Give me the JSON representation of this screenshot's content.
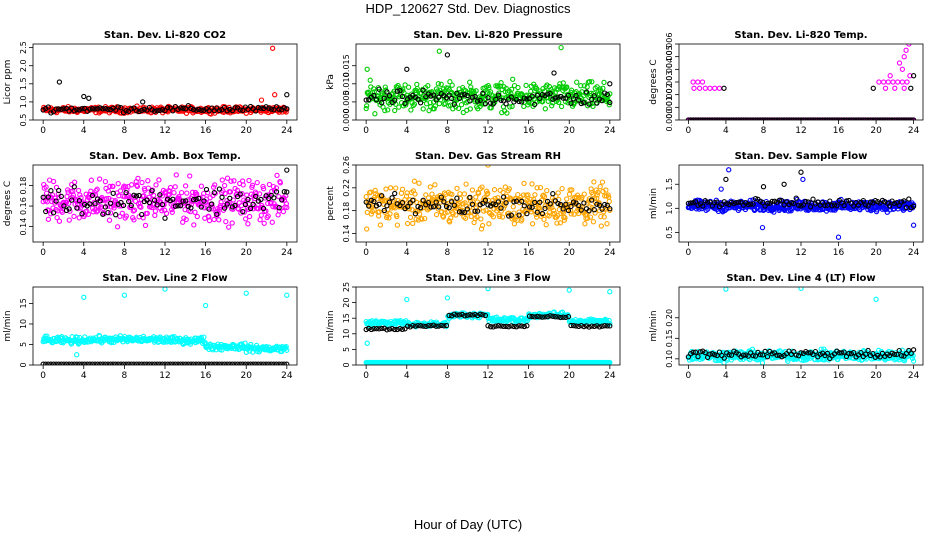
{
  "title": "HDP_120627  Std. Dev. Diagnostics",
  "xlabel": "Hour of Day (UTC)",
  "chart_data": [
    {
      "type": "scatter",
      "title": "Stan. Dev. Li-820 CO2",
      "ylabel": "Licor ppm",
      "yticks": [
        "0.5",
        "1.0",
        "1.5",
        "2.0",
        "2.5"
      ],
      "ylim": [
        0.5,
        2.6
      ],
      "xlim": [
        -1,
        25
      ],
      "xticks": [
        "0",
        "4",
        "8",
        "12",
        "16",
        "20",
        "24"
      ],
      "grid": false,
      "series": [
        {
          "color": "#ff0000",
          "pattern": {
            "type": "band",
            "center": 0.78,
            "spread": 0.12,
            "n": 380
          },
          "outliers": [
            {
              "x": 22.6,
              "y": 2.48
            },
            {
              "x": 22.8,
              "y": 1.2
            },
            {
              "x": 21.5,
              "y": 1.05
            }
          ]
        },
        {
          "color": "#000000",
          "pattern": {
            "type": "band",
            "center": 0.8,
            "spread": 0.12,
            "n": 95
          },
          "outliers": [
            {
              "x": 1.6,
              "y": 1.55
            },
            {
              "x": 4.0,
              "y": 1.15
            },
            {
              "x": 4.5,
              "y": 1.1
            },
            {
              "x": 24.0,
              "y": 1.2
            },
            {
              "x": 9.8,
              "y": 1.0
            }
          ]
        }
      ]
    },
    {
      "type": "scatter",
      "title": "Stan. Dev. Li-820 Pressure",
      "ylabel": "kPa",
      "yticks": [
        "0.000",
        "0.005",
        "0.010",
        "0.015"
      ],
      "ylim": [
        0,
        0.021
      ],
      "xlim": [
        -1,
        25
      ],
      "xticks": [
        "0",
        "4",
        "8",
        "12",
        "16",
        "20",
        "24"
      ],
      "grid": false,
      "series": [
        {
          "color": "#00cc00",
          "pattern": {
            "type": "band",
            "center": 0.0065,
            "spread": 0.0055,
            "n": 420
          },
          "outliers": [
            {
              "x": 19.2,
              "y": 0.02
            },
            {
              "x": 7.2,
              "y": 0.019
            },
            {
              "x": 0.1,
              "y": 0.014
            }
          ]
        },
        {
          "color": "#000000",
          "pattern": {
            "type": "band",
            "center": 0.006,
            "spread": 0.003,
            "n": 95
          },
          "outliers": [
            {
              "x": 4.0,
              "y": 0.014
            },
            {
              "x": 8.0,
              "y": 0.018
            },
            {
              "x": 18.5,
              "y": 0.013
            },
            {
              "x": 24.0,
              "y": 0.01
            }
          ]
        }
      ]
    },
    {
      "type": "scatter",
      "title": "Stan. Dev. Li-820 Temp.",
      "ylabel": "degrees C",
      "yticks": [
        "0.000",
        "0.001",
        "0.002",
        "0.003",
        "0.004",
        "0.005",
        "0.006"
      ],
      "ylim": [
        0,
        0.006
      ],
      "xlim": [
        -1,
        25
      ],
      "xticks": [
        "0",
        "4",
        "8",
        "12",
        "16",
        "20",
        "24"
      ],
      "grid": false,
      "series": [
        {
          "color": "#ff00ff",
          "pattern": {
            "type": "line",
            "level": 0,
            "n": 260
          },
          "outliers": [
            {
              "x": 0.5,
              "y": 0.003
            },
            {
              "x": 1.0,
              "y": 0.003
            },
            {
              "x": 1.5,
              "y": 0.003
            },
            {
              "x": 0.6,
              "y": 0.0025
            },
            {
              "x": 1.2,
              "y": 0.0025
            },
            {
              "x": 1.8,
              "y": 0.0025
            },
            {
              "x": 2.3,
              "y": 0.0025
            },
            {
              "x": 2.8,
              "y": 0.0025
            },
            {
              "x": 3.3,
              "y": 0.0025
            },
            {
              "x": 20.3,
              "y": 0.003
            },
            {
              "x": 20.8,
              "y": 0.003
            },
            {
              "x": 21.3,
              "y": 0.003
            },
            {
              "x": 21.8,
              "y": 0.003
            },
            {
              "x": 22.3,
              "y": 0.003
            },
            {
              "x": 22.8,
              "y": 0.003
            },
            {
              "x": 23.3,
              "y": 0.003
            },
            {
              "x": 21.0,
              "y": 0.0025
            },
            {
              "x": 22.0,
              "y": 0.0025
            },
            {
              "x": 23.0,
              "y": 0.0025
            },
            {
              "x": 22.5,
              "y": 0.0045
            },
            {
              "x": 23.0,
              "y": 0.005
            },
            {
              "x": 23.2,
              "y": 0.0055
            },
            {
              "x": 23.5,
              "y": 0.006
            },
            {
              "x": 22.8,
              "y": 0.004
            },
            {
              "x": 23.6,
              "y": 0.0035
            },
            {
              "x": 21.5,
              "y": 0.0035
            }
          ]
        },
        {
          "color": "#000000",
          "pattern": {
            "type": "line",
            "level": 0,
            "n": 95
          },
          "outliers": [
            {
              "x": 3.8,
              "y": 0.0025
            },
            {
              "x": 19.7,
              "y": 0.0025
            },
            {
              "x": 23.7,
              "y": 0.0025
            },
            {
              "x": 24.0,
              "y": 0.0035
            }
          ]
        }
      ]
    },
    {
      "type": "scatter",
      "title": "Stan. Dev. Amb. Box Temp.",
      "ylabel": "degrees C",
      "yticks": [
        "0.14",
        "0.16",
        "0.18"
      ],
      "ylim": [
        0.125,
        0.2
      ],
      "xlim": [
        -1,
        25
      ],
      "xticks": [
        "0",
        "4",
        "8",
        "12",
        "16",
        "20",
        "24"
      ],
      "grid": false,
      "series": [
        {
          "color": "#ff00ff",
          "pattern": {
            "type": "band",
            "center": 0.165,
            "spread": 0.03,
            "n": 420
          },
          "outliers": []
        },
        {
          "color": "#000000",
          "pattern": {
            "type": "band",
            "center": 0.165,
            "spread": 0.02,
            "n": 95
          },
          "outliers": [
            {
              "x": 24.0,
              "y": 0.195
            }
          ]
        }
      ]
    },
    {
      "type": "scatter",
      "title": "Stan. Dev. Gas Stream RH",
      "ylabel": "percent",
      "yticks": [
        "0.14",
        "0.18",
        "0.22",
        "0.26"
      ],
      "ylim": [
        0.125,
        0.26
      ],
      "xlim": [
        -1,
        25
      ],
      "xticks": [
        "0",
        "4",
        "8",
        "12",
        "16",
        "20",
        "24"
      ],
      "grid": false,
      "series": [
        {
          "color": "#ffa500",
          "pattern": {
            "type": "band",
            "center": 0.19,
            "spread": 0.05,
            "n": 430
          },
          "outliers": [
            {
              "x": 12.0,
              "y": 0.26
            }
          ]
        },
        {
          "color": "#000000",
          "pattern": {
            "type": "band",
            "center": 0.19,
            "spread": 0.025,
            "n": 95
          },
          "outliers": []
        }
      ]
    },
    {
      "type": "scatter",
      "title": "Stan. Dev. Sample Flow",
      "ylabel": "ml/min",
      "yticks": [
        "0.5",
        "1.0",
        "1.5"
      ],
      "ylim": [
        0.3,
        1.9
      ],
      "xlim": [
        -1,
        25
      ],
      "xticks": [
        "0",
        "4",
        "8",
        "12",
        "16",
        "20",
        "24"
      ],
      "grid": false,
      "series": [
        {
          "color": "#0000ff",
          "pattern": {
            "type": "band",
            "center": 1.05,
            "spread": 0.16,
            "n": 420
          },
          "outliers": [
            {
              "x": 4.3,
              "y": 1.8
            },
            {
              "x": 7.9,
              "y": 0.6
            },
            {
              "x": 16.0,
              "y": 0.4
            },
            {
              "x": 24.0,
              "y": 0.65
            },
            {
              "x": 12.2,
              "y": 1.6
            },
            {
              "x": 3.5,
              "y": 1.4
            }
          ]
        },
        {
          "color": "#000000",
          "pattern": {
            "type": "band",
            "center": 1.1,
            "spread": 0.14,
            "n": 95
          },
          "outliers": [
            {
              "x": 4.0,
              "y": 1.6
            },
            {
              "x": 12.0,
              "y": 1.75
            },
            {
              "x": 8.0,
              "y": 1.45
            },
            {
              "x": 10.2,
              "y": 1.5
            }
          ]
        }
      ]
    },
    {
      "type": "scatter",
      "title": "Stan. Dev. Line 2 Flow",
      "ylabel": "ml/min",
      "yticks": [
        "0",
        "5",
        "10",
        "15"
      ],
      "ylim": [
        0,
        19
      ],
      "xlim": [
        -1,
        25
      ],
      "xticks": [
        "0",
        "4",
        "8",
        "12",
        "16",
        "20",
        "24"
      ],
      "grid": false,
      "series": [
        {
          "color": "#00ffff",
          "pattern": {
            "type": "steps",
            "segments": [
              [
                0,
                4,
                6.0
              ],
              [
                4,
                12,
                6.2
              ],
              [
                12,
                16,
                6.0
              ],
              [
                16,
                20,
                4.5
              ],
              [
                20,
                24,
                4.0
              ]
            ],
            "spread": 1.2,
            "n": 380
          },
          "outliers": [
            {
              "x": 4.0,
              "y": 16.5
            },
            {
              "x": 8.0,
              "y": 17.0
            },
            {
              "x": 12.0,
              "y": 18.5
            },
            {
              "x": 20.0,
              "y": 17.5
            },
            {
              "x": 24.0,
              "y": 17.0
            },
            {
              "x": 16.0,
              "y": 14.5
            },
            {
              "x": 0.2,
              "y": 7.0
            },
            {
              "x": 3.3,
              "y": 2.5
            }
          ]
        },
        {
          "color": "#000000",
          "pattern": {
            "type": "line",
            "level": 0.2,
            "n": 95
          },
          "outliers": []
        }
      ]
    },
    {
      "type": "scatter",
      "title": "Stan. Dev. Line 3 Flow",
      "ylabel": "ml/min",
      "yticks": [
        "0",
        "5",
        "10",
        "15",
        "20",
        "25"
      ],
      "ylim": [
        0,
        25
      ],
      "xlim": [
        -1,
        25
      ],
      "xticks": [
        "0",
        "4",
        "8",
        "12",
        "16",
        "20",
        "24"
      ],
      "grid": false,
      "series": [
        {
          "color": "#00ffff",
          "pattern": {
            "type": "steps",
            "segments": [
              [
                0,
                4,
                13.5
              ],
              [
                4,
                8,
                13
              ],
              [
                8,
                12,
                16
              ],
              [
                12,
                16,
                14.5
              ],
              [
                16,
                20,
                16
              ],
              [
                20,
                24,
                14
              ]
            ],
            "spread": 1.2,
            "n": 320
          },
          "outliers": [
            {
              "x": 4.0,
              "y": 21
            },
            {
              "x": 8.0,
              "y": 21.5
            },
            {
              "x": 12.0,
              "y": 24.5
            },
            {
              "x": 20.0,
              "y": 24
            },
            {
              "x": 24.0,
              "y": 23.5
            },
            {
              "x": 0.1,
              "y": 7
            }
          ]
        },
        {
          "color": "#00ffff",
          "pattern": {
            "type": "line",
            "level": 0.8,
            "n": 260
          },
          "outliers": []
        },
        {
          "color": "#000000",
          "pattern": {
            "type": "steps",
            "segments": [
              [
                0,
                4,
                11.5
              ],
              [
                4,
                8,
                12.5
              ],
              [
                8,
                12,
                16
              ],
              [
                12,
                16,
                12.5
              ],
              [
                16,
                20,
                15.5
              ],
              [
                20,
                24,
                12.5
              ]
            ],
            "spread": 0.5,
            "n": 95
          },
          "outliers": []
        }
      ]
    },
    {
      "type": "scatter",
      "title": "Stan. Dev. Line 4 (LT) Flow",
      "ylabel": "ml/min",
      "yticks": [
        "0.10",
        "0.15",
        "0.20"
      ],
      "ylim": [
        0.085,
        0.275
      ],
      "xlim": [
        -1,
        25
      ],
      "xticks": [
        "0",
        "4",
        "8",
        "12",
        "16",
        "20",
        "24"
      ],
      "grid": false,
      "series": [
        {
          "color": "#00ffff",
          "pattern": {
            "type": "band",
            "center": 0.108,
            "spread": 0.018,
            "n": 420
          },
          "outliers": [
            {
              "x": 4.0,
              "y": 0.27
            },
            {
              "x": 12.0,
              "y": 0.272
            },
            {
              "x": 20.0,
              "y": 0.245
            },
            {
              "x": 7.9,
              "y": 0.09
            },
            {
              "x": 3.8,
              "y": 0.09
            }
          ]
        },
        {
          "color": "#000000",
          "pattern": {
            "type": "band",
            "center": 0.112,
            "spread": 0.015,
            "n": 95
          },
          "outliers": []
        }
      ]
    }
  ]
}
